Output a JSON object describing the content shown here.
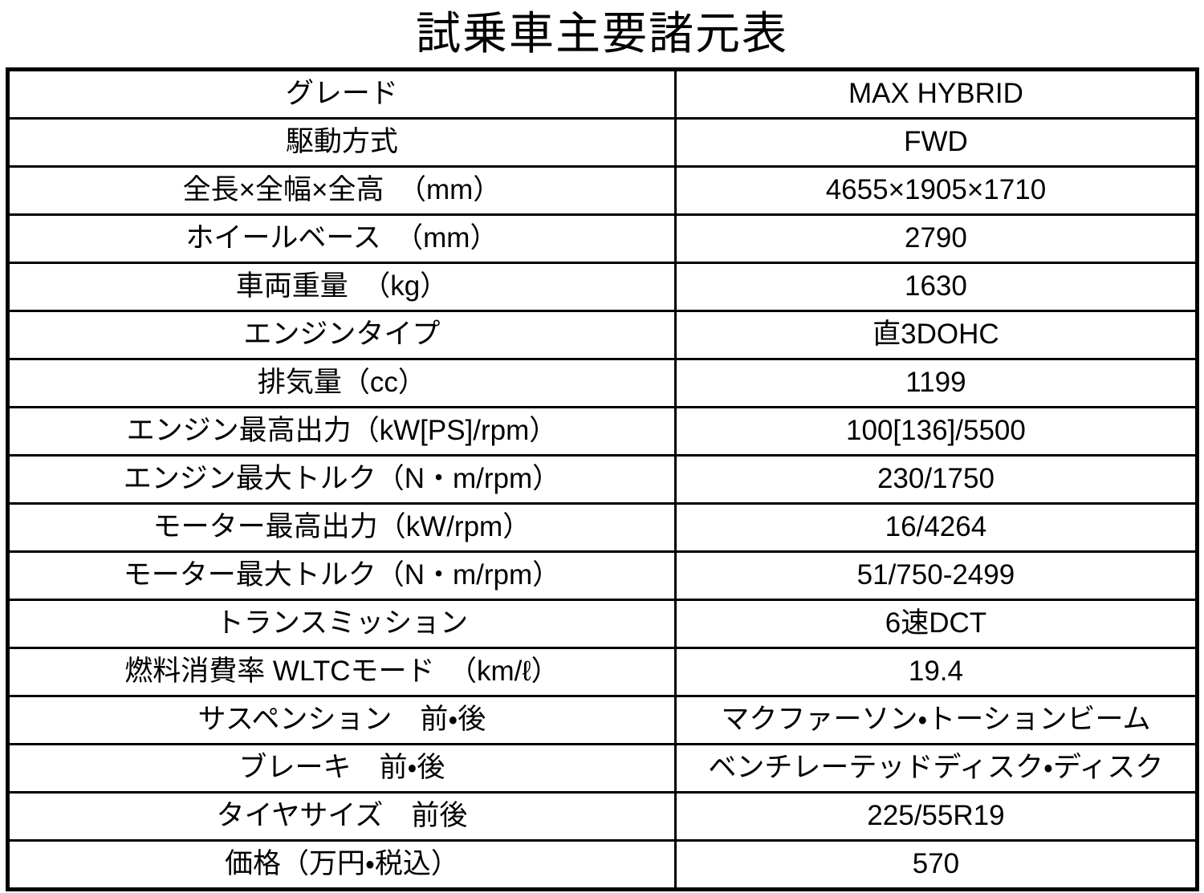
{
  "title": "試乗車主要諸元表",
  "colors": {
    "background": "#ffffff",
    "text": "#000000",
    "border": "#000000"
  },
  "table": {
    "columns": [
      "item",
      "spec"
    ],
    "rows": [
      {
        "label": "グレード",
        "value": "MAX HYBRID"
      },
      {
        "label": "駆動方式",
        "value": "FWD"
      },
      {
        "label": "全長×全幅×全高　（mm）",
        "value": "4655×1905×1710"
      },
      {
        "label": "ホイールベース　（mm）",
        "value": "2790"
      },
      {
        "label": "車両重量　（kg）",
        "value": "1630"
      },
      {
        "label": "エンジンタイプ",
        "value": "直3DOHC"
      },
      {
        "label": "排気量（cc）",
        "value": "1199"
      },
      {
        "label": "エンジン最高出力（kW[PS]/rpm）",
        "value": "100[136]/5500"
      },
      {
        "label": "エンジン最大トルク（N・m/rpm）",
        "value": "230/1750"
      },
      {
        "label": "モーター最高出力（kW/rpm）",
        "value": "16/4264"
      },
      {
        "label": "モーター最大トルク（N・m/rpm）",
        "value": "51/750-2499"
      },
      {
        "label": "トランスミッション",
        "value": "6速DCT"
      },
      {
        "label": "燃料消費率 WLTCモード　（km/ℓ）",
        "value": "19.4"
      },
      {
        "label": "サスペンション　前・後",
        "value": "マクファーソン・トーションビーム"
      },
      {
        "label": "ブレーキ　前・後",
        "value": "ベンチレーテッドディスク・ディスク"
      },
      {
        "label": "タイヤサイズ　前後",
        "value": "225/55R19"
      },
      {
        "label": "価格（万円・税込）",
        "value": "570"
      }
    ]
  }
}
